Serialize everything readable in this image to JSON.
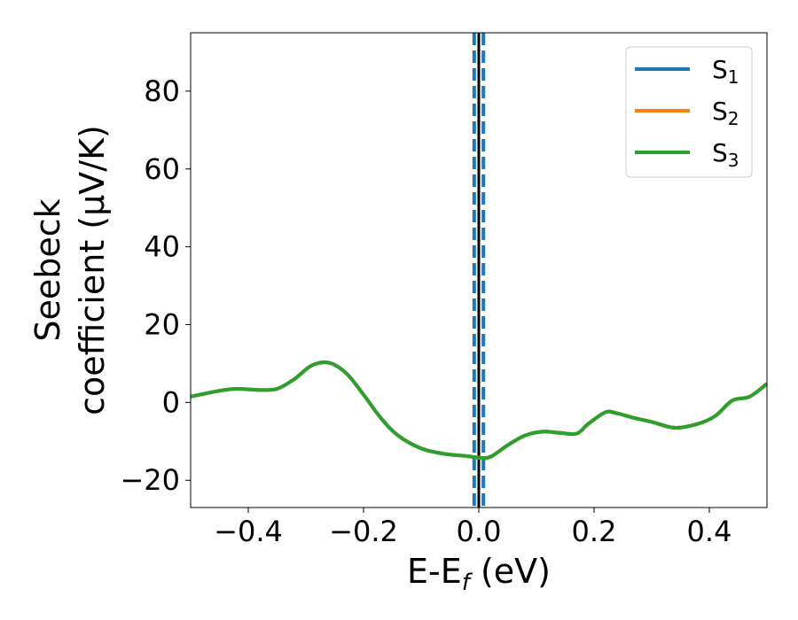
{
  "chart_data": {
    "type": "line",
    "xlabel": "E-E",
    "xlabel_sub": "f",
    "xlabel_unit": " (eV)",
    "ylabel_line1": "Seebeck",
    "ylabel_line2": "coefficient  (μV/K)",
    "xlim": [
      -0.5,
      0.5
    ],
    "ylim": [
      -27,
      95
    ],
    "xticks": [
      -0.4,
      -0.2,
      0.0,
      0.2,
      0.4
    ],
    "xtick_labels": [
      "−0.4",
      "−0.2",
      "0.0",
      "0.2",
      "0.4"
    ],
    "yticks": [
      -20,
      0,
      20,
      40,
      60,
      80
    ],
    "ytick_labels": [
      "−20",
      "0",
      "20",
      "40",
      "60",
      "80"
    ],
    "grid": false,
    "legend_position": "top-right",
    "vertical_lines": [
      {
        "x": 0.0,
        "style": "solid",
        "color": "#000000"
      },
      {
        "x": -0.008,
        "style": "dashed",
        "color": "#1f77b4"
      },
      {
        "x": 0.008,
        "style": "dashed",
        "color": "#1f77b4"
      }
    ],
    "x": [
      -0.5,
      -0.45,
      -0.42,
      -0.38,
      -0.35,
      -0.32,
      -0.29,
      -0.26,
      -0.23,
      -0.2,
      -0.17,
      -0.14,
      -0.1,
      -0.06,
      -0.02,
      0.0,
      0.02,
      0.05,
      0.08,
      0.11,
      0.14,
      0.17,
      0.19,
      0.22,
      0.24,
      0.27,
      0.3,
      0.34,
      0.38,
      0.41,
      0.44,
      0.47,
      0.5
    ],
    "series": [
      {
        "name_base": "S",
        "name_sub": "1",
        "color": "#1f77b4",
        "values": [
          1.5,
          3.0,
          3.5,
          3.2,
          3.5,
          6.0,
          9.5,
          10.2,
          7.5,
          2.0,
          -4.0,
          -8.5,
          -11.8,
          -13.2,
          -13.8,
          -14.2,
          -14.0,
          -11.0,
          -8.5,
          -7.5,
          -7.8,
          -8.0,
          -5.5,
          -2.5,
          -2.8,
          -4.0,
          -5.0,
          -6.5,
          -5.5,
          -3.5,
          0.5,
          1.5,
          4.8
        ]
      },
      {
        "name_base": "S",
        "name_sub": "2",
        "color": "#ff7f0e",
        "values": [
          1.5,
          3.0,
          3.5,
          3.2,
          3.5,
          6.0,
          9.5,
          10.2,
          7.5,
          2.0,
          -4.0,
          -8.5,
          -11.8,
          -13.2,
          -13.8,
          -14.2,
          -14.0,
          -11.0,
          -8.5,
          -7.5,
          -7.8,
          -8.0,
          -5.5,
          -2.5,
          -2.8,
          -4.0,
          -5.0,
          -6.5,
          -5.5,
          -3.5,
          0.5,
          1.5,
          4.8
        ]
      },
      {
        "name_base": "S",
        "name_sub": "3",
        "color": "#2ca02c",
        "values": [
          1.5,
          3.0,
          3.5,
          3.2,
          3.5,
          6.0,
          9.5,
          10.2,
          7.5,
          2.0,
          -4.0,
          -8.5,
          -11.8,
          -13.2,
          -13.8,
          -14.2,
          -14.0,
          -11.0,
          -8.5,
          -7.5,
          -7.8,
          -8.0,
          -5.5,
          -2.5,
          -2.8,
          -4.0,
          -5.0,
          -6.5,
          -5.5,
          -3.5,
          0.5,
          1.5,
          4.8
        ]
      }
    ]
  }
}
